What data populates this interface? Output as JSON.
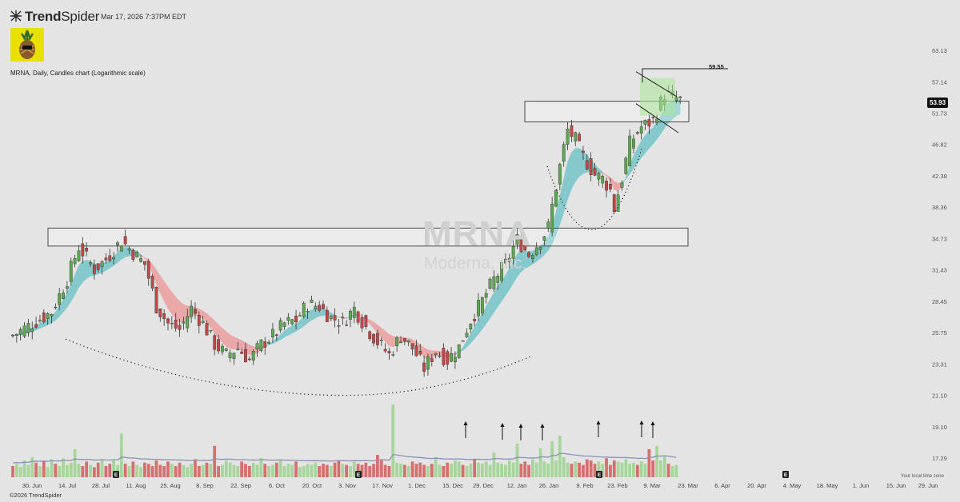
{
  "header": {
    "brand_name_bold": "Trend",
    "brand_name_light": "Spider",
    "timestamp": "Mar 17, 2026 7:37PM EDT",
    "chart_description": "MRNA, Daily, Candles chart (Logarithmic scale)"
  },
  "footer": {
    "copyright": "©2026 TrendSpider",
    "timezone_note": "Your local time zone"
  },
  "watermark": {
    "ticker": "MRNA",
    "company": "Moderna, Inc."
  },
  "colors": {
    "up": "#5ca84f",
    "down": "#c44646",
    "up_volume": "#a6d69a",
    "down_volume": "#d76f6f",
    "ribbon_bull": "#86c9cc",
    "ribbon_bear": "#eba8a8",
    "background": "#e4e4e4"
  },
  "chart_data": {
    "type": "candlestick",
    "symbol": "MRNA",
    "interval": "Daily",
    "scale": "logarithmic",
    "current_price": "53.93",
    "target_label": "59.55",
    "y_range": [
      16.5,
      64.5
    ],
    "y_tick_labels": [
      "63.13",
      "57.14",
      "51.73",
      "46.82",
      "42.38",
      "38.36",
      "34.73",
      "31.43",
      "28.45",
      "25.75",
      "23.31",
      "21.10",
      "19.10",
      "17.29"
    ],
    "x_tick_labels": [
      "30. Jun",
      "14. Jul",
      "28. Jul",
      "11. Aug",
      "25. Aug",
      "8. Sep",
      "22. Sep",
      "6. Oct",
      "20. Oct",
      "3. Nov",
      "17. Nov",
      "1. Dec",
      "15. Dec",
      "29. Dec",
      "12. Jan",
      "26. Jan",
      "9. Feb",
      "23. Feb",
      "9. Mar",
      "23. Mar",
      "6. Apr",
      "20. Apr",
      "4. May",
      "18. May",
      "1. Jun",
      "15. Jun",
      "29. Jun"
    ],
    "earnings_markers": [
      "7. Aug",
      "6. Nov",
      "13. Feb",
      "1. May"
    ],
    "earnings_label": "E",
    "price_path": [
      [
        0,
        25.5
      ],
      [
        10,
        27.5
      ],
      [
        14,
        30.5
      ],
      [
        17,
        33.8
      ],
      [
        21,
        31.5
      ],
      [
        24,
        32.5
      ],
      [
        28,
        34.5
      ],
      [
        31,
        33.2
      ],
      [
        34,
        32.0
      ],
      [
        37,
        28.0
      ],
      [
        40,
        26.5
      ],
      [
        43,
        26.0
      ],
      [
        46,
        27.8
      ],
      [
        49,
        26.5
      ],
      [
        52,
        24.8
      ],
      [
        55,
        24.0
      ],
      [
        58,
        24.5
      ],
      [
        61,
        23.6
      ],
      [
        64,
        24.8
      ],
      [
        67,
        25.5
      ],
      [
        70,
        26.5
      ],
      [
        73,
        26.8
      ],
      [
        76,
        28.2
      ],
      [
        79,
        28.0
      ],
      [
        82,
        27.0
      ],
      [
        85,
        26.6
      ],
      [
        88,
        27.8
      ],
      [
        91,
        26.2
      ],
      [
        94,
        25.0
      ],
      [
        97,
        24.0
      ],
      [
        100,
        25.5
      ],
      [
        103,
        24.5
      ],
      [
        106,
        23.0
      ],
      [
        109,
        24.3
      ],
      [
        112,
        23.6
      ],
      [
        115,
        24.6
      ],
      [
        118,
        26.8
      ],
      [
        121,
        28.5
      ],
      [
        124,
        30.5
      ],
      [
        127,
        32.0
      ],
      [
        130,
        34.6
      ],
      [
        133,
        33.0
      ],
      [
        136,
        34.5
      ],
      [
        138,
        36.0
      ],
      [
        140,
        41.0
      ],
      [
        143,
        49.0
      ],
      [
        145,
        47.5
      ],
      [
        147,
        45.0
      ],
      [
        150,
        42.5
      ],
      [
        152,
        42.0
      ],
      [
        154,
        40.5
      ],
      [
        155,
        38.2
      ],
      [
        157,
        42.0
      ],
      [
        159,
        47.0
      ],
      [
        162,
        49.5
      ],
      [
        165,
        50.5
      ],
      [
        168,
        55.0
      ],
      [
        170,
        54.5
      ],
      [
        172,
        53.93
      ]
    ],
    "volume_series": [
      1.0,
      1.2,
      0.9,
      1.5,
      1.1,
      1.8,
      1.3,
      1.0,
      1.4,
      0.9,
      1.6,
      1.2,
      1.0,
      1.7,
      1.1,
      1.3,
      2.5,
      1.2,
      1.0,
      1.4,
      1.1,
      0.9,
      1.3,
      1.6,
      1.0,
      1.2,
      1.5,
      1.1,
      3.9,
      1.2,
      1.0,
      1.4,
      1.1,
      0.9,
      1.3,
      1.2,
      1.0,
      1.5,
      1.1,
      1.0,
      1.4,
      1.2,
      1.0,
      1.3,
      1.1,
      0.9,
      1.2,
      1.6,
      1.0,
      1.1,
      1.3,
      1.2,
      2.8,
      1.0,
      1.1,
      1.5,
      1.3,
      1.1,
      1.0,
      1.4,
      1.2,
      1.0,
      1.3,
      1.1,
      1.7,
      1.2,
      1.0,
      1.1,
      1.3,
      1.5,
      1.0,
      1.2,
      1.1,
      1.4,
      0.9,
      1.0,
      1.2,
      1.1,
      1.3,
      1.0,
      1.2,
      1.1,
      1.0,
      1.3,
      1.5,
      1.2,
      1.1,
      1.0,
      1.4,
      1.2,
      1.1,
      1.3,
      1.0,
      1.2,
      2.0,
      1.5,
      1.1,
      1.0,
      6.5,
      1.3,
      1.2,
      1.1,
      1.0,
      1.4,
      1.2,
      1.3,
      1.1,
      1.0,
      1.2,
      1.8,
      1.1,
      1.0,
      1.3,
      1.2,
      1.5,
      1.4,
      1.1,
      1.0,
      1.2,
      1.6,
      1.3,
      1.2,
      1.4,
      1.1,
      2.2,
      1.3,
      1.2,
      1.1,
      1.5,
      1.3,
      3.0,
      1.2,
      1.4,
      1.1,
      1.6,
      1.3,
      2.6,
      1.4,
      1.2,
      3.2,
      1.5,
      3.7,
      1.8,
      1.3,
      1.2,
      1.4,
      1.3,
      1.1,
      1.6,
      1.5,
      1.2,
      1.4,
      1.2,
      1.7,
      1.1,
      1.5,
      1.4,
      1.3,
      1.6,
      1.2,
      1.3,
      1.1,
      1.4,
      1.2,
      2.5,
      1.5,
      2.8,
      1.5,
      1.9,
      1.2,
      1.0,
      1.1
    ],
    "volume_spikes_marked": [
      "23. Dec",
      "5. Jan",
      "13. Jan",
      "22. Jan",
      "16. Feb",
      "6. Mar",
      "10. Mar"
    ],
    "zones": [
      {
        "price_low": 33.9,
        "price_high": 35.9,
        "from": "27. Jun",
        "to": "19. Mar"
      },
      {
        "price_low": 50.3,
        "price_high": 53.7,
        "from": "20. Jan",
        "to": "19. Mar"
      }
    ],
    "patterns": [
      {
        "type": "rounded bottom",
        "from": "14. Jul",
        "to": "20. Jan",
        "low": 21.1
      },
      {
        "type": "rounded bottom",
        "from": "28. Jan",
        "to": "23. Feb",
        "low": 35.7
      },
      {
        "type": "bull flag",
        "from": "3. Mar",
        "to": "17. Mar"
      }
    ],
    "grid": false,
    "legend": "none"
  }
}
